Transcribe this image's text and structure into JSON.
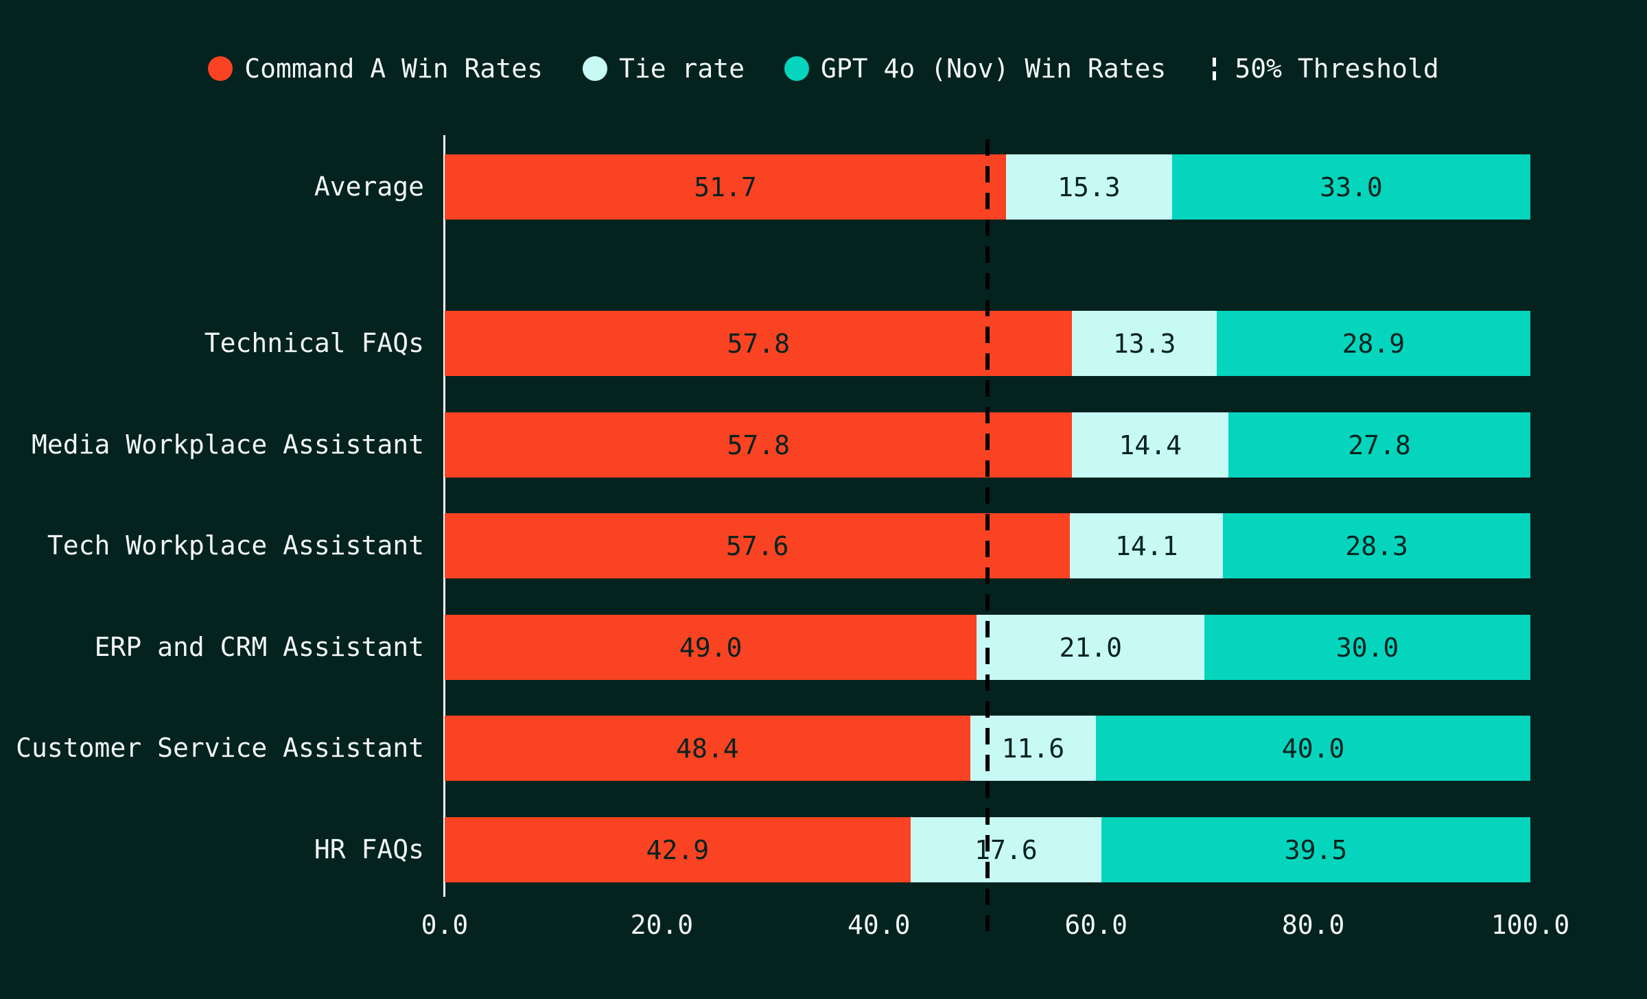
{
  "colors": {
    "background": "#04231E",
    "command_a": "#FA4323",
    "tie": "#C8FAF5",
    "gpt4o": "#05D5BD",
    "axis_line": "#FFFFFF",
    "threshold_line": "#000000",
    "label_text": "#F1F6F4",
    "value_text": "#04231E"
  },
  "legend": {
    "items": [
      {
        "label": "Command A Win Rates",
        "swatch": "dot",
        "color": "#FA4323"
      },
      {
        "label": "Tie rate",
        "swatch": "dot",
        "color": "#C8FAF5"
      },
      {
        "label": "GPT 4o (Nov) Win Rates",
        "swatch": "dot",
        "color": "#05D5BD"
      },
      {
        "label": "50% Threshold",
        "swatch": "dashed-line",
        "color": "#FFFFFF"
      }
    ]
  },
  "chart_data": {
    "type": "bar",
    "orientation": "horizontal",
    "stacked": true,
    "categories": [
      "Average",
      "Technical FAQs",
      "Media Workplace Assistant",
      "Tech Workplace Assistant",
      "ERP and CRM Assistant",
      "Customer Service Assistant",
      "HR FAQs"
    ],
    "series": [
      {
        "name": "Command A Win Rates",
        "color": "#FA4323",
        "values": [
          51.7,
          57.8,
          57.8,
          57.6,
          49.0,
          48.4,
          42.9
        ]
      },
      {
        "name": "Tie rate",
        "color": "#C8FAF5",
        "values": [
          15.3,
          13.3,
          14.4,
          14.1,
          21.0,
          11.6,
          17.6
        ]
      },
      {
        "name": "GPT 4o (Nov) Win Rates",
        "color": "#05D5BD",
        "values": [
          33.0,
          28.9,
          27.8,
          28.3,
          30.0,
          40.0,
          39.5
        ]
      }
    ],
    "threshold": {
      "value": 50,
      "label": "50% Threshold"
    },
    "xlim": [
      0,
      100
    ],
    "x_ticks": [
      "0.0",
      "20.0",
      "40.0",
      "60.0",
      "80.0",
      "100.0"
    ],
    "grid": false,
    "legend_position": "top",
    "value_labels": "one decimal, centered in each segment"
  }
}
